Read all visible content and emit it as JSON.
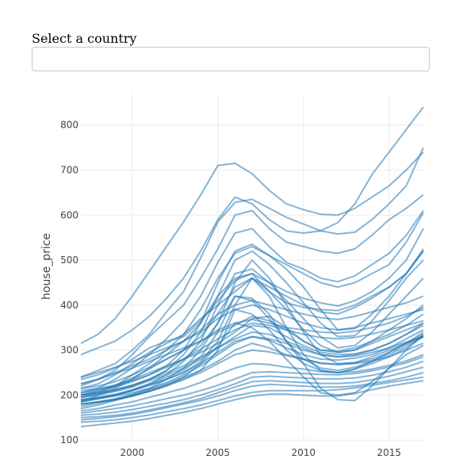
{
  "selector": {
    "label": "Select a country",
    "value": ""
  },
  "chart_data": {
    "type": "line",
    "title": "",
    "xlabel": "",
    "ylabel": "house_price",
    "xlim": [
      1997,
      2017
    ],
    "ylim": [
      95,
      870
    ],
    "x_ticks": [
      2000,
      2005,
      2010,
      2015
    ],
    "y_ticks": [
      100,
      200,
      300,
      400,
      500,
      600,
      700,
      800
    ],
    "grid": true,
    "legend": "none",
    "line_color": "#1f77b4",
    "x": [
      1997,
      1998,
      1999,
      2000,
      2001,
      2002,
      2003,
      2004,
      2005,
      2006,
      2007,
      2008,
      2009,
      2010,
      2011,
      2012,
      2013,
      2014,
      2015,
      2016,
      2017
    ],
    "series": [
      {
        "values": [
          315,
          335,
          370,
          420,
          475,
          530,
          585,
          645,
          710,
          715,
          692,
          655,
          625,
          612,
          602,
          600,
          615,
          640,
          665,
          700,
          740
        ]
      },
      {
        "values": [
          290,
          305,
          320,
          345,
          375,
          415,
          460,
          520,
          590,
          640,
          625,
          590,
          565,
          560,
          565,
          583,
          625,
          690,
          740,
          790,
          840
        ]
      },
      {
        "values": [
          240,
          255,
          270,
          300,
          335,
          385,
          430,
          505,
          585,
          628,
          635,
          615,
          595,
          580,
          565,
          558,
          562,
          590,
          625,
          665,
          750
        ]
      },
      {
        "values": [
          220,
          235,
          255,
          290,
          330,
          365,
          400,
          460,
          525,
          600,
          610,
          570,
          540,
          530,
          520,
          515,
          525,
          555,
          590,
          615,
          645
        ]
      },
      {
        "values": [
          205,
          215,
          235,
          260,
          290,
          325,
          365,
          420,
          495,
          560,
          570,
          530,
          495,
          480,
          460,
          452,
          465,
          490,
          515,
          555,
          610
        ]
      },
      {
        "values": [
          195,
          205,
          220,
          245,
          270,
          300,
          335,
          390,
          460,
          515,
          530,
          510,
          490,
          470,
          450,
          440,
          450,
          470,
          490,
          540,
          605
        ]
      },
      {
        "values": [
          185,
          200,
          215,
          235,
          260,
          290,
          320,
          360,
          420,
          460,
          470,
          450,
          430,
          415,
          405,
          398,
          410,
          430,
          460,
          500,
          570
        ]
      },
      {
        "values": [
          235,
          245,
          260,
          280,
          305,
          320,
          330,
          365,
          410,
          455,
          470,
          430,
          405,
          395,
          390,
          388,
          400,
          420,
          440,
          470,
          525
        ]
      },
      {
        "values": [
          215,
          225,
          245,
          270,
          295,
          315,
          335,
          370,
          400,
          430,
          460,
          440,
          420,
          400,
          385,
          380,
          395,
          415,
          440,
          470,
          520
        ]
      },
      {
        "values": [
          240,
          250,
          262,
          275,
          290,
          305,
          320,
          345,
          380,
          400,
          410,
          400,
          390,
          380,
          372,
          368,
          375,
          385,
          395,
          405,
          420
        ]
      },
      {
        "values": [
          225,
          235,
          250,
          265,
          280,
          300,
          320,
          340,
          370,
          390,
          400,
          390,
          375,
          360,
          350,
          345,
          350,
          360,
          370,
          380,
          390
        ]
      },
      {
        "values": [
          215,
          220,
          230,
          245,
          262,
          280,
          300,
          320,
          345,
          360,
          368,
          360,
          350,
          345,
          340,
          338,
          342,
          350,
          360,
          375,
          395
        ]
      },
      {
        "values": [
          225,
          235,
          248,
          260,
          275,
          290,
          305,
          320,
          340,
          355,
          375,
          365,
          345,
          320,
          300,
          295,
          300,
          320,
          345,
          370,
          400
        ]
      },
      {
        "values": [
          205,
          212,
          220,
          235,
          250,
          265,
          280,
          295,
          315,
          340,
          370,
          375,
          350,
          320,
          300,
          298,
          305,
          320,
          335,
          355,
          380
        ]
      },
      {
        "values": [
          200,
          205,
          212,
          222,
          235,
          250,
          265,
          285,
          305,
          330,
          355,
          350,
          330,
          310,
          295,
          290,
          292,
          300,
          315,
          335,
          360
        ]
      },
      {
        "values": [
          195,
          200,
          208,
          218,
          232,
          245,
          260,
          280,
          305,
          325,
          340,
          335,
          320,
          305,
          290,
          285,
          290,
          300,
          315,
          335,
          355
        ]
      },
      {
        "values": [
          185,
          192,
          200,
          210,
          222,
          235,
          250,
          270,
          295,
          320,
          330,
          322,
          305,
          290,
          280,
          278,
          282,
          290,
          305,
          325,
          345
        ]
      },
      {
        "values": [
          175,
          182,
          190,
          200,
          212,
          225,
          240,
          255,
          275,
          300,
          315,
          305,
          290,
          280,
          270,
          268,
          272,
          280,
          295,
          315,
          340
        ]
      },
      {
        "values": [
          180,
          185,
          190,
          198,
          208,
          220,
          235,
          255,
          300,
          390,
          380,
          345,
          300,
          270,
          255,
          250,
          258,
          270,
          285,
          305,
          330
        ]
      },
      {
        "values": [
          190,
          195,
          200,
          210,
          225,
          240,
          255,
          285,
          340,
          420,
          415,
          380,
          320,
          280,
          260,
          255,
          262,
          275,
          290,
          310,
          330
        ]
      },
      {
        "values": [
          185,
          192,
          200,
          210,
          222,
          235,
          250,
          275,
          320,
          400,
          460,
          420,
          350,
          290,
          255,
          250,
          258,
          275,
          295,
          315,
          335
        ]
      },
      {
        "values": [
          195,
          202,
          210,
          220,
          235,
          255,
          280,
          310,
          360,
          450,
          500,
          460,
          400,
          340,
          290,
          270,
          272,
          285,
          300,
          315,
          330
        ]
      },
      {
        "values": [
          200,
          210,
          222,
          238,
          258,
          280,
          300,
          330,
          380,
          440,
          460,
          430,
          390,
          345,
          310,
          295,
          300,
          315,
          330,
          345,
          360
        ]
      },
      {
        "values": [
          170,
          178,
          188,
          198,
          210,
          222,
          235,
          250,
          270,
          290,
          300,
          296,
          288,
          280,
          272,
          268,
          270,
          276,
          285,
          300,
          315
        ]
      },
      {
        "values": [
          165,
          170,
          178,
          185,
          195,
          205,
          215,
          228,
          245,
          260,
          270,
          268,
          262,
          258,
          252,
          250,
          252,
          258,
          266,
          276,
          290
        ]
      },
      {
        "values": [
          160,
          165,
          170,
          176,
          184,
          192,
          200,
          210,
          222,
          236,
          250,
          252,
          250,
          248,
          246,
          245,
          248,
          254,
          262,
          272,
          285
        ]
      },
      {
        "values": [
          155,
          158,
          162,
          168,
          175,
          182,
          190,
          200,
          212,
          225,
          240,
          242,
          240,
          238,
          236,
          236,
          238,
          244,
          252,
          262,
          275
        ]
      },
      {
        "values": [
          150,
          152,
          155,
          160,
          167,
          175,
          183,
          192,
          205,
          218,
          230,
          232,
          230,
          228,
          226,
          226,
          228,
          234,
          242,
          252,
          262
        ]
      },
      {
        "values": [
          145,
          148,
          152,
          157,
          164,
          172,
          180,
          188,
          198,
          210,
          220,
          224,
          222,
          220,
          218,
          218,
          220,
          226,
          232,
          240,
          250
        ]
      },
      {
        "values": [
          140,
          142,
          145,
          150,
          156,
          163,
          170,
          178,
          188,
          198,
          206,
          210,
          210,
          210,
          210,
          212,
          216,
          222,
          228,
          234,
          240
        ]
      },
      {
        "values": [
          130,
          134,
          138,
          142,
          148,
          155,
          162,
          170,
          180,
          190,
          198,
          202,
          202,
          200,
          198,
          198,
          204,
          212,
          220,
          226,
          232
        ]
      },
      {
        "values": [
          210,
          215,
          222,
          232,
          245,
          265,
          300,
          360,
          450,
          520,
          535,
          510,
          480,
          440,
          390,
          345,
          348,
          380,
          420,
          470,
          520
        ]
      },
      {
        "values": [
          200,
          205,
          212,
          222,
          235,
          255,
          290,
          340,
          420,
          500,
          520,
          490,
          450,
          405,
          360,
          330,
          332,
          365,
          410,
          460,
          500
        ]
      },
      {
        "values": [
          190,
          195,
          202,
          212,
          225,
          245,
          275,
          320,
          400,
          470,
          480,
          450,
          410,
          370,
          330,
          305,
          310,
          340,
          380,
          420,
          460
        ]
      },
      {
        "values": [
          180,
          185,
          192,
          202,
          215,
          235,
          260,
          300,
          360,
          420,
          410,
          370,
          320,
          270,
          215,
          190,
          188,
          220,
          260,
          300,
          335
        ]
      },
      {
        "values": [
          180,
          185,
          190,
          198,
          208,
          222,
          240,
          270,
          310,
          360,
          350,
          320,
          280,
          240,
          205,
          200,
          205,
          230,
          260,
          290,
          310
        ]
      },
      {
        "values": [
          188,
          192,
          198,
          205,
          215,
          228,
          245,
          265,
          290,
          315,
          330,
          325,
          315,
          300,
          290,
          285,
          287,
          295,
          305,
          318,
          330
        ]
      },
      {
        "values": [
          200,
          208,
          218,
          230,
          245,
          262,
          280,
          302,
          325,
          345,
          360,
          355,
          345,
          335,
          328,
          325,
          328,
          336,
          345,
          355,
          365
        ]
      }
    ]
  }
}
